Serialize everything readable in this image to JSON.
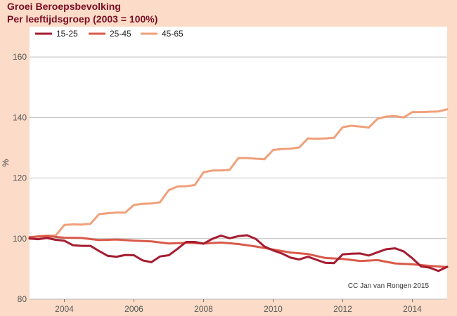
{
  "chart_data": {
    "type": "line",
    "title": "Groei Beroepsbevolking",
    "subtitle": "Per leeftijdsgroep (2003 = 100%)",
    "ylabel": "%",
    "xlabel": "",
    "credit": "CC Jan van Rongen 2015",
    "xlim": [
      2003,
      2015
    ],
    "ylim": [
      80,
      170
    ],
    "x_ticks": [
      2004,
      2006,
      2008,
      2010,
      2012,
      2014
    ],
    "y_ticks": [
      80,
      100,
      120,
      140,
      160
    ],
    "grid": "horizontal",
    "legend_position": "top-left",
    "series": [
      {
        "name": "15-25",
        "color": "#a51c30",
        "points": [
          [
            2003.0,
            100
          ],
          [
            2003.25,
            99.8
          ],
          [
            2003.5,
            100.2
          ],
          [
            2003.75,
            99.6
          ],
          [
            2004.0,
            99.3
          ],
          [
            2004.25,
            97.8
          ],
          [
            2004.5,
            97.6
          ],
          [
            2004.75,
            97.6
          ],
          [
            2005.0,
            95.9
          ],
          [
            2005.25,
            94.3
          ],
          [
            2005.5,
            94.0
          ],
          [
            2005.75,
            94.6
          ],
          [
            2006.0,
            94.5
          ],
          [
            2006.25,
            92.8
          ],
          [
            2006.5,
            92.2
          ],
          [
            2006.75,
            94.1
          ],
          [
            2007.0,
            94.5
          ],
          [
            2007.25,
            96.6
          ],
          [
            2007.5,
            98.9
          ],
          [
            2007.75,
            98.9
          ],
          [
            2008.0,
            98.3
          ],
          [
            2008.25,
            99.9
          ],
          [
            2008.5,
            101.0
          ],
          [
            2008.75,
            100.1
          ],
          [
            2009.0,
            100.8
          ],
          [
            2009.25,
            101.1
          ],
          [
            2009.5,
            99.9
          ],
          [
            2009.75,
            97.4
          ],
          [
            2010.0,
            96.1
          ],
          [
            2010.25,
            95.1
          ],
          [
            2010.5,
            93.7
          ],
          [
            2010.75,
            93.1
          ],
          [
            2011.0,
            94.0
          ],
          [
            2011.25,
            93.0
          ],
          [
            2011.5,
            92.0
          ],
          [
            2011.75,
            91.9
          ],
          [
            2012.0,
            94.8
          ],
          [
            2012.25,
            95.0
          ],
          [
            2012.5,
            95.1
          ],
          [
            2012.75,
            94.4
          ],
          [
            2013.0,
            95.5
          ],
          [
            2013.25,
            96.5
          ],
          [
            2013.5,
            96.8
          ],
          [
            2013.75,
            95.8
          ],
          [
            2014.0,
            93.5
          ],
          [
            2014.25,
            90.8
          ],
          [
            2014.5,
            90.4
          ],
          [
            2014.75,
            89.3
          ],
          [
            2015.0,
            90.7
          ]
        ]
      },
      {
        "name": "25-45",
        "color": "#d95a4a",
        "points": [
          [
            2003.0,
            100.5
          ],
          [
            2003.5,
            100.8
          ],
          [
            2004.0,
            100.3
          ],
          [
            2004.5,
            100.2
          ],
          [
            2005.0,
            99.5
          ],
          [
            2005.5,
            99.7
          ],
          [
            2006.0,
            99.3
          ],
          [
            2006.5,
            99.1
          ],
          [
            2007.0,
            98.4
          ],
          [
            2007.5,
            98.6
          ],
          [
            2008.0,
            98.4
          ],
          [
            2008.5,
            98.7
          ],
          [
            2009.0,
            98.2
          ],
          [
            2009.5,
            97.4
          ],
          [
            2010.0,
            96.4
          ],
          [
            2010.5,
            95.4
          ],
          [
            2011.0,
            94.9
          ],
          [
            2011.5,
            93.6
          ],
          [
            2012.0,
            93.3
          ],
          [
            2012.5,
            92.6
          ],
          [
            2013.0,
            92.9
          ],
          [
            2013.5,
            91.8
          ],
          [
            2014.0,
            91.5
          ],
          [
            2014.5,
            91.0
          ],
          [
            2015.0,
            90.6
          ]
        ]
      },
      {
        "name": "45-65",
        "color": "#f0a07a",
        "points": [
          [
            2003.0,
            100.3
          ],
          [
            2003.25,
            100.8
          ],
          [
            2003.5,
            101.0
          ],
          [
            2003.75,
            101.0
          ],
          [
            2004.0,
            104.5
          ],
          [
            2004.25,
            104.7
          ],
          [
            2004.5,
            104.6
          ],
          [
            2004.75,
            104.9
          ],
          [
            2005.0,
            108.1
          ],
          [
            2005.25,
            108.4
          ],
          [
            2005.5,
            108.6
          ],
          [
            2005.75,
            108.6
          ],
          [
            2006.0,
            111.1
          ],
          [
            2006.25,
            111.5
          ],
          [
            2006.5,
            111.6
          ],
          [
            2006.75,
            112.0
          ],
          [
            2007.0,
            116.0
          ],
          [
            2007.25,
            117.2
          ],
          [
            2007.5,
            117.3
          ],
          [
            2007.75,
            117.7
          ],
          [
            2008.0,
            121.9
          ],
          [
            2008.25,
            122.5
          ],
          [
            2008.5,
            122.5
          ],
          [
            2008.75,
            122.7
          ],
          [
            2009.0,
            126.6
          ],
          [
            2009.25,
            126.6
          ],
          [
            2009.5,
            126.4
          ],
          [
            2009.75,
            126.2
          ],
          [
            2010.0,
            129.3
          ],
          [
            2010.25,
            129.6
          ],
          [
            2010.5,
            129.7
          ],
          [
            2010.75,
            130.1
          ],
          [
            2011.0,
            133.1
          ],
          [
            2011.25,
            133.0
          ],
          [
            2011.5,
            133.1
          ],
          [
            2011.75,
            133.3
          ],
          [
            2012.0,
            136.8
          ],
          [
            2012.25,
            137.3
          ],
          [
            2012.5,
            137.0
          ],
          [
            2012.75,
            136.7
          ],
          [
            2013.0,
            139.6
          ],
          [
            2013.25,
            140.3
          ],
          [
            2013.5,
            140.5
          ],
          [
            2013.75,
            140.0
          ],
          [
            2014.0,
            141.8
          ],
          [
            2014.25,
            141.8
          ],
          [
            2014.5,
            141.9
          ],
          [
            2014.75,
            142.0
          ],
          [
            2015.0,
            142.7
          ]
        ]
      }
    ]
  }
}
